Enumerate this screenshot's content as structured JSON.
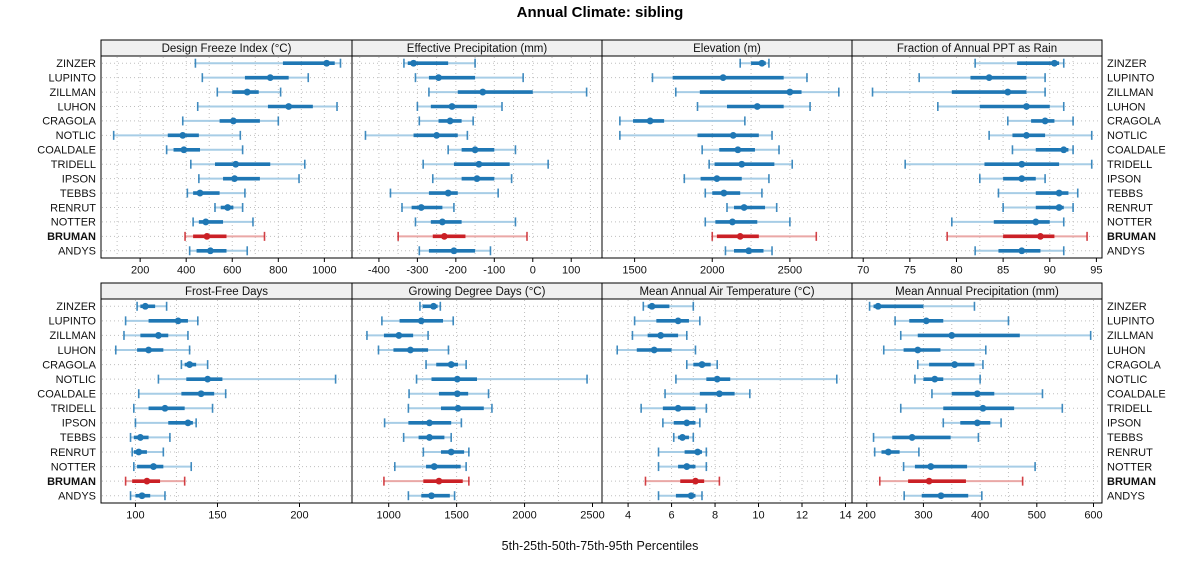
{
  "title": "Annual Climate: sibling",
  "footer": "5th-25th-50th-75th-95th Percentiles",
  "colors": {
    "series": "#1f77b4",
    "series_light": "#a7cde6",
    "highlight": "#cb2026",
    "highlight_light": "#eaa8a6",
    "header_bg": "#f0f0f0",
    "border": "#000000",
    "grid": "#bfbfbf",
    "text": "#111111"
  },
  "chart_data": {
    "type": "interval-dotplot",
    "title": "Annual Climate: sibling",
    "xlabel": "5th-25th-50th-75th-95th Percentiles",
    "percentiles": [
      5,
      25,
      50,
      75,
      95
    ],
    "legend": "none",
    "grid": "dotted",
    "sites": [
      "ZINZER",
      "LUPINTO",
      "ZILLMAN",
      "LUHON",
      "CRAGOLA",
      "NOTLIC",
      "COALDALE",
      "TRIDELL",
      "IPSON",
      "TEBBS",
      "RENRUT",
      "NOTTER",
      "BRUMAN",
      "ANDYS"
    ],
    "highlight_site": "BRUMAN",
    "panels": [
      {
        "title": "Design Freeze Index (°C)",
        "xlim": [
          30,
          1120
        ],
        "ticks": [
          200,
          400,
          600,
          800,
          1000
        ],
        "values": [
          [
            440,
            820,
            1010,
            1045,
            1070
          ],
          [
            470,
            655,
            765,
            845,
            930
          ],
          [
            535,
            600,
            665,
            715,
            810
          ],
          [
            450,
            755,
            845,
            950,
            1055
          ],
          [
            385,
            545,
            605,
            720,
            800
          ],
          [
            85,
            320,
            385,
            455,
            635
          ],
          [
            315,
            345,
            390,
            460,
            645
          ],
          [
            420,
            525,
            615,
            765,
            915
          ],
          [
            455,
            560,
            610,
            720,
            890
          ],
          [
            405,
            430,
            460,
            545,
            655
          ],
          [
            525,
            550,
            580,
            605,
            645
          ],
          [
            430,
            455,
            485,
            560,
            690
          ],
          [
            395,
            430,
            490,
            575,
            740
          ],
          [
            415,
            445,
            505,
            575,
            665
          ]
        ]
      },
      {
        "title": "Effective Precipitation (mm)",
        "xlim": [
          -470,
          180
        ],
        "ticks": [
          -400,
          -300,
          -200,
          -100,
          0,
          100
        ],
        "values": [
          [
            -335,
            -325,
            -310,
            -220,
            -150
          ],
          [
            -305,
            -270,
            -245,
            -150,
            -25
          ],
          [
            -270,
            -195,
            -130,
            0,
            140
          ],
          [
            -300,
            -265,
            -210,
            -145,
            -80
          ],
          [
            -295,
            -245,
            -215,
            -185,
            -155
          ],
          [
            -435,
            -310,
            -250,
            -195,
            -170
          ],
          [
            -220,
            -185,
            -150,
            -100,
            -45
          ],
          [
            -285,
            -205,
            -140,
            -60,
            40
          ],
          [
            -260,
            -185,
            -145,
            -100,
            -55
          ],
          [
            -370,
            -270,
            -220,
            -195,
            -90
          ],
          [
            -340,
            -315,
            -290,
            -235,
            -205
          ],
          [
            -305,
            -265,
            -235,
            -185,
            -45
          ],
          [
            -350,
            -260,
            -230,
            -175,
            -15
          ],
          [
            -295,
            -270,
            -205,
            -150,
            -110
          ]
        ]
      },
      {
        "title": "Elevation (m)",
        "xlim": [
          1290,
          2900
        ],
        "ticks": [
          1500,
          2000,
          2500
        ],
        "values": [
          [
            2180,
            2250,
            2320,
            2345,
            2365
          ],
          [
            1615,
            1745,
            2070,
            2460,
            2610
          ],
          [
            1765,
            1920,
            2500,
            2575,
            2815
          ],
          [
            1905,
            2095,
            2290,
            2460,
            2630
          ],
          [
            1405,
            1490,
            1600,
            1690,
            2210
          ],
          [
            1405,
            1905,
            2135,
            2300,
            2385
          ],
          [
            1935,
            2045,
            2165,
            2275,
            2430
          ],
          [
            1980,
            2015,
            2190,
            2400,
            2515
          ],
          [
            1820,
            1925,
            2030,
            2190,
            2365
          ],
          [
            1955,
            2000,
            2075,
            2180,
            2320
          ],
          [
            2095,
            2140,
            2205,
            2340,
            2415
          ],
          [
            1955,
            2020,
            2130,
            2290,
            2500
          ],
          [
            2000,
            2030,
            2180,
            2300,
            2670
          ],
          [
            2085,
            2140,
            2235,
            2330,
            2385
          ]
        ]
      },
      {
        "title": "Fraction of Annual PPT as Rain",
        "xlim": [
          68.8,
          95.6
        ],
        "ticks": [
          70,
          75,
          80,
          85,
          90,
          95
        ],
        "values": [
          [
            82,
            86.5,
            90.5,
            91,
            91.5
          ],
          [
            76,
            81.5,
            83.5,
            87.5,
            89.5
          ],
          [
            71,
            79.5,
            85.5,
            87.5,
            89.5
          ],
          [
            78,
            82.5,
            87.5,
            90,
            91.5
          ],
          [
            85.5,
            88,
            89.5,
            90.5,
            92.5
          ],
          [
            83.5,
            86,
            87.5,
            89.5,
            94.5
          ],
          [
            86,
            88.5,
            91.5,
            92,
            92.5
          ],
          [
            74.5,
            83,
            87,
            91,
            94.5
          ],
          [
            82.5,
            85,
            87,
            88.5,
            89.5
          ],
          [
            84.5,
            88.5,
            91,
            92,
            93
          ],
          [
            85,
            88.5,
            91,
            91.5,
            92.5
          ],
          [
            79.5,
            84,
            88.5,
            90,
            91.5
          ],
          [
            79,
            85,
            89,
            90.5,
            94
          ],
          [
            82,
            84.5,
            87,
            89,
            91.5
          ]
        ]
      },
      {
        "title": "Frost-Free Days",
        "xlim": [
          79,
          232
        ],
        "ticks": [
          100,
          150,
          200
        ],
        "values": [
          [
            101,
            103,
            106,
            112,
            119
          ],
          [
            94,
            108,
            126,
            132,
            138
          ],
          [
            93,
            103,
            114,
            120,
            132
          ],
          [
            88,
            101,
            108,
            117,
            133
          ],
          [
            128,
            130,
            133,
            137,
            144
          ],
          [
            114,
            131,
            144,
            153,
            222
          ],
          [
            102,
            128,
            140,
            148,
            155
          ],
          [
            99,
            108,
            118,
            130,
            147
          ],
          [
            100,
            120,
            132,
            135,
            137
          ],
          [
            97,
            99,
            103,
            108,
            121
          ],
          [
            98,
            99,
            102,
            107,
            117
          ],
          [
            99,
            101,
            111,
            117,
            134
          ],
          [
            94,
            98,
            107,
            115,
            130
          ],
          [
            97,
            100,
            104,
            109,
            118
          ]
        ]
      },
      {
        "title": "Growing Degree Days (°C)",
        "xlim": [
          730,
          2570
        ],
        "ticks": [
          1000,
          1500,
          2000,
          2500
        ],
        "values": [
          [
            1230,
            1250,
            1330,
            1360,
            1380
          ],
          [
            950,
            1080,
            1240,
            1400,
            1475
          ],
          [
            840,
            965,
            1075,
            1180,
            1290
          ],
          [
            925,
            1035,
            1160,
            1290,
            1440
          ],
          [
            1275,
            1350,
            1460,
            1510,
            1570
          ],
          [
            1205,
            1315,
            1505,
            1650,
            2460
          ],
          [
            1150,
            1370,
            1505,
            1585,
            1735
          ],
          [
            1145,
            1385,
            1510,
            1700,
            1760
          ],
          [
            970,
            1145,
            1300,
            1460,
            1535
          ],
          [
            1110,
            1220,
            1300,
            1410,
            1460
          ],
          [
            1255,
            1385,
            1460,
            1555,
            1590
          ],
          [
            1045,
            1275,
            1335,
            1530,
            1570
          ],
          [
            965,
            1255,
            1370,
            1545,
            1590
          ],
          [
            1145,
            1240,
            1315,
            1450,
            1485
          ]
        ]
      },
      {
        "title": "Mean Annual Air Temperature (°C)",
        "xlim": [
          2.8,
          14.3
        ],
        "ticks": [
          4,
          6,
          8,
          10,
          12,
          14
        ],
        "values": [
          [
            4.7,
            4.9,
            5.1,
            5.9,
            7.0
          ],
          [
            4.3,
            5.3,
            6.3,
            6.8,
            7.3
          ],
          [
            4.2,
            4.9,
            5.5,
            6.3,
            6.7
          ],
          [
            3.5,
            4.4,
            5.2,
            6.0,
            7.1
          ],
          [
            6.7,
            7.0,
            7.4,
            7.8,
            8.1
          ],
          [
            6.2,
            7.6,
            8.1,
            8.7,
            13.6
          ],
          [
            5.7,
            7.3,
            8.2,
            8.9,
            9.6
          ],
          [
            4.6,
            5.6,
            6.3,
            7.1,
            7.6
          ],
          [
            5.6,
            6.1,
            6.7,
            7.1,
            7.3
          ],
          [
            6.1,
            6.3,
            6.5,
            6.8,
            7.0
          ],
          [
            5.4,
            6.6,
            7.2,
            7.4,
            7.6
          ],
          [
            5.4,
            6.3,
            6.7,
            7.1,
            7.6
          ],
          [
            4.8,
            6.4,
            7.1,
            7.5,
            8.2
          ],
          [
            5.4,
            6.2,
            6.9,
            7.1,
            7.4
          ]
        ]
      },
      {
        "title": "Mean Annual Precipitation (mm)",
        "xlim": [
          174,
          615
        ],
        "ticks": [
          200,
          300,
          400,
          500,
          600
        ],
        "values": [
          [
            205,
            212,
            220,
            300,
            390
          ],
          [
            250,
            275,
            305,
            335,
            450
          ],
          [
            260,
            290,
            350,
            470,
            595
          ],
          [
            230,
            265,
            290,
            330,
            410
          ],
          [
            290,
            310,
            355,
            390,
            405
          ],
          [
            285,
            300,
            320,
            335,
            400
          ],
          [
            315,
            350,
            395,
            425,
            510
          ],
          [
            260,
            335,
            405,
            460,
            545
          ],
          [
            335,
            365,
            395,
            418,
            437
          ],
          [
            212,
            245,
            280,
            348,
            397
          ],
          [
            214,
            226,
            238,
            258,
            292
          ],
          [
            265,
            285,
            313,
            377,
            497
          ],
          [
            223,
            273,
            310,
            375,
            475
          ],
          [
            266,
            297,
            331,
            379,
            403
          ]
        ]
      }
    ]
  }
}
